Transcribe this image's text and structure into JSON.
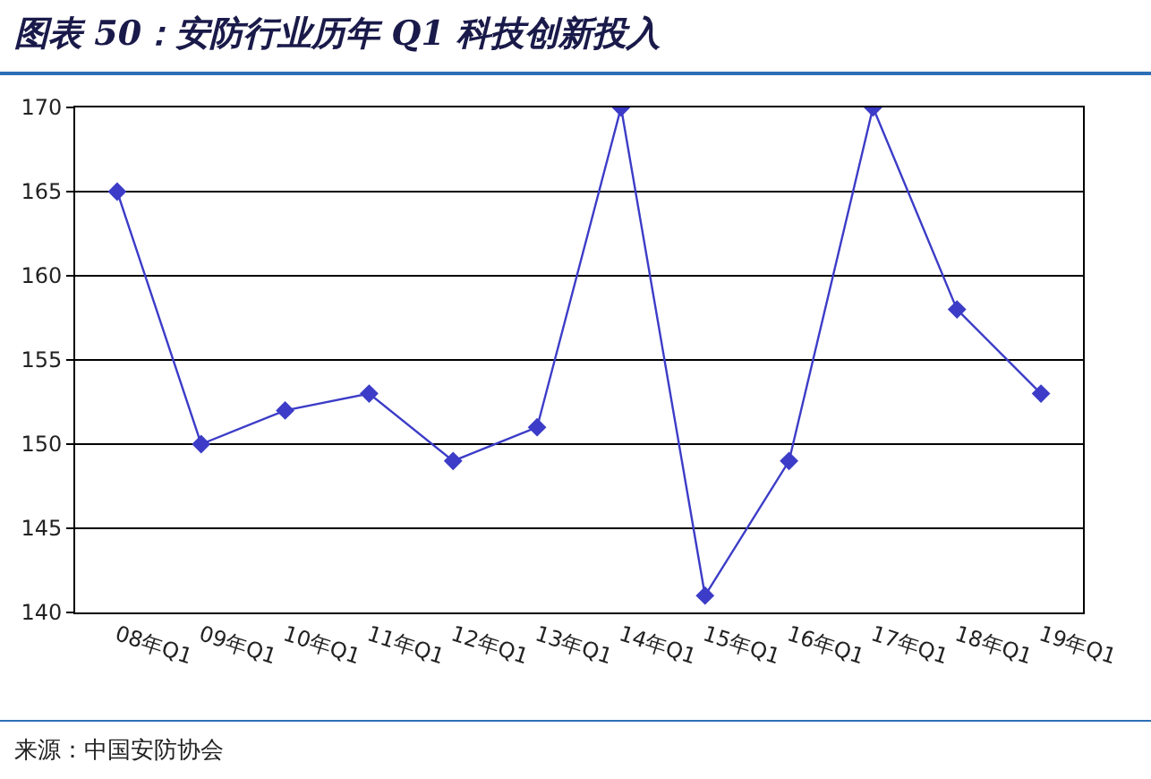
{
  "chart_data": {
    "type": "line",
    "title": "图表 50：安防行业历年 Q1 科技创新投入",
    "categories": [
      "08年Q1",
      "09年Q1",
      "10年Q1",
      "11年Q1",
      "12年Q1",
      "13年Q1",
      "14年Q1",
      "15年Q1",
      "16年Q1",
      "17年Q1",
      "18年Q1",
      "19年Q1"
    ],
    "series": [
      {
        "color": "#3c3cc8",
        "values": [
          165,
          150,
          152,
          153,
          149,
          151,
          170,
          141,
          149,
          170,
          158,
          153
        ]
      }
    ],
    "ylim": [
      140,
      170
    ],
    "yticks": [
      140,
      145,
      150,
      155,
      160,
      165,
      170
    ],
    "grid": "y",
    "marker": "diamond",
    "annotations": [
      "来源：中国安防协会"
    ]
  }
}
